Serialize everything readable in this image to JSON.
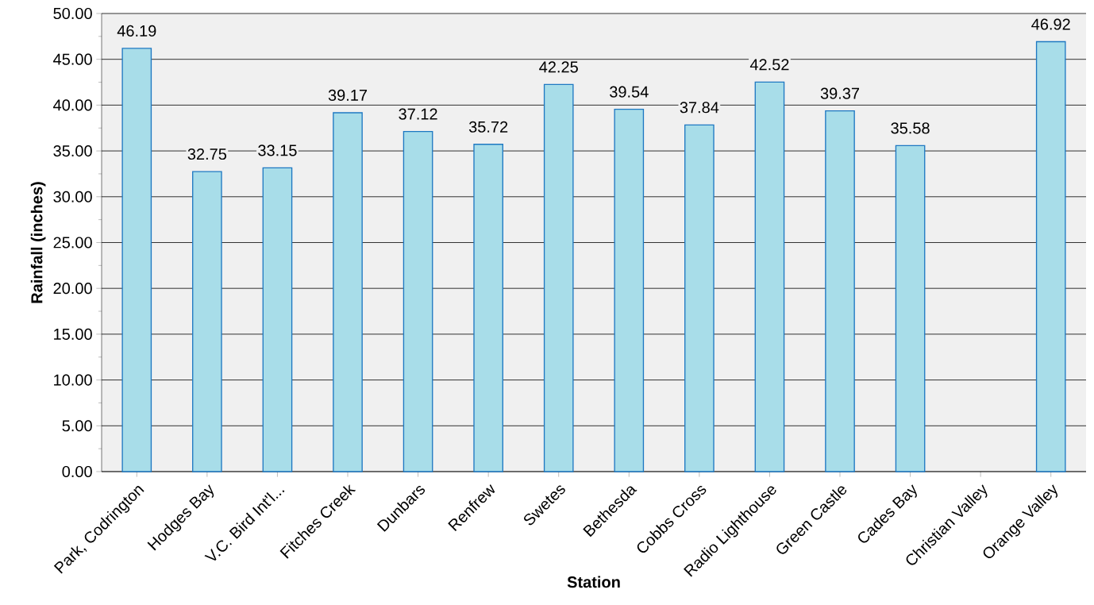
{
  "chart_data": {
    "type": "bar",
    "xlabel": "Station",
    "ylabel": "Rainfall (inches)",
    "categories": [
      "Park, Codrington",
      "Hodges Bay",
      "V.C. Bird Int'l...",
      "Fitches Creek",
      "Dunbars",
      "Renfrew",
      "Swetes",
      "Bethesda",
      "Cobbs Cross",
      "Radio Lighthouse",
      "Green Castle",
      "Cades Bay",
      "Christian Valley",
      "Orange Valley"
    ],
    "values": [
      46.19,
      32.75,
      33.15,
      39.17,
      37.12,
      35.72,
      42.25,
      39.54,
      37.84,
      42.52,
      39.37,
      35.58,
      null,
      46.92
    ],
    "color": "#a8dde9",
    "ylim": [
      0,
      50
    ],
    "yticks": [
      {
        "value": 0,
        "label": "0.00"
      },
      {
        "value": 5,
        "label": "5.00"
      },
      {
        "value": 10,
        "label": "10.00"
      },
      {
        "value": 15,
        "label": "15.00"
      },
      {
        "value": 20,
        "label": "20.00"
      },
      {
        "value": 25,
        "label": "25.00"
      },
      {
        "value": 30,
        "label": "30.00"
      },
      {
        "value": 35,
        "label": "35.00"
      },
      {
        "value": 40,
        "label": "40.00"
      },
      {
        "value": 45,
        "label": "45.00"
      },
      {
        "value": 50,
        "label": "50.00"
      }
    ],
    "grid": "y",
    "data_labels": true
  }
}
